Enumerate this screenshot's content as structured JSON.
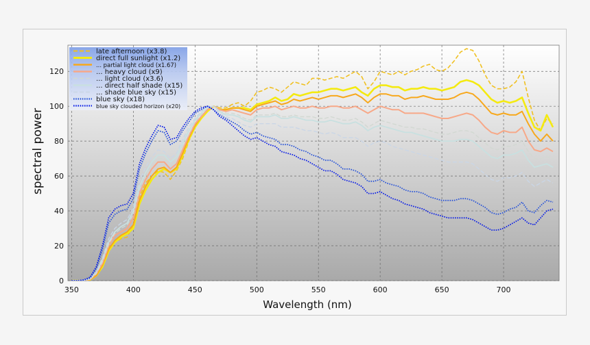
{
  "chart_data": {
    "type": "line",
    "title": "",
    "xlabel": "Wavelength (nm)",
    "ylabel": "spectral power",
    "xlim": [
      347,
      745
    ],
    "ylim": [
      0,
      135
    ],
    "xticks": [
      350,
      400,
      450,
      500,
      550,
      600,
      650,
      700
    ],
    "yticks": [
      0,
      20,
      40,
      60,
      80,
      100,
      120
    ],
    "grid": true,
    "legend_position": "top-left",
    "x": [
      350,
      355,
      360,
      365,
      370,
      375,
      380,
      385,
      390,
      395,
      400,
      405,
      410,
      415,
      420,
      425,
      430,
      435,
      440,
      445,
      450,
      455,
      460,
      465,
      470,
      475,
      480,
      485,
      490,
      495,
      500,
      505,
      510,
      515,
      520,
      525,
      530,
      535,
      540,
      545,
      550,
      555,
      560,
      565,
      570,
      575,
      580,
      585,
      590,
      595,
      600,
      605,
      610,
      615,
      620,
      625,
      630,
      635,
      640,
      645,
      650,
      655,
      660,
      665,
      670,
      675,
      680,
      685,
      690,
      695,
      700,
      705,
      710,
      715,
      720,
      725,
      730,
      735,
      740
    ],
    "series": [
      {
        "name": "late afternoon (x3.8)",
        "color": "#f0c020",
        "style": "dashed",
        "width": 1.6,
        "values": [
          0,
          0,
          0.3,
          1,
          4,
          10,
          19,
          22,
          24,
          25,
          32,
          48,
          56,
          60,
          63,
          62,
          58,
          63,
          70,
          80,
          88,
          94,
          98,
          100,
          99,
          99,
          101,
          102,
          100,
          103,
          108,
          109,
          111,
          110,
          108,
          111,
          114,
          113,
          112,
          116,
          116,
          115,
          116,
          117,
          116,
          118,
          120,
          117,
          110,
          114,
          120,
          119,
          118,
          120,
          118,
          120,
          121,
          123,
          124,
          121,
          120,
          122,
          126,
          131,
          133,
          132,
          126,
          118,
          112,
          110,
          110,
          111,
          114,
          120,
          105,
          92,
          86,
          93,
          90
        ]
      },
      {
        "name": "direct full sunlight (x1.2)",
        "color": "#f4ea10",
        "style": "solid",
        "width": 2.6,
        "values": [
          0,
          0,
          0.2,
          0.5,
          3,
          8,
          17,
          22,
          25,
          27,
          30,
          44,
          52,
          58,
          62,
          64,
          62,
          64,
          72,
          81,
          88,
          93,
          97,
          100,
          98,
          98,
          99,
          99,
          99,
          98,
          101,
          102,
          103,
          105,
          103,
          104,
          107,
          106,
          107,
          108,
          108,
          109,
          110,
          110,
          109,
          110,
          111,
          108,
          106,
          110,
          112,
          112,
          111,
          111,
          109,
          110,
          110,
          111,
          110,
          110,
          109,
          110,
          111,
          114,
          115,
          114,
          112,
          108,
          104,
          102,
          103,
          102,
          103,
          105,
          96,
          88,
          86,
          95,
          88
        ]
      },
      {
        "name": "... partial light cloud (x1.67)",
        "color": "#f7a81c",
        "style": "solid",
        "width": 2.0,
        "values": [
          0,
          0,
          0.2,
          0.6,
          3,
          9,
          18,
          23,
          26,
          28,
          32,
          46,
          54,
          60,
          64,
          65,
          62,
          65,
          73,
          82,
          89,
          94,
          98,
          100,
          98,
          98,
          99,
          99,
          98,
          97,
          100,
          101,
          102,
          103,
          101,
          102,
          104,
          103,
          104,
          105,
          104,
          105,
          106,
          106,
          105,
          106,
          107,
          105,
          102,
          105,
          107,
          107,
          106,
          106,
          104,
          105,
          105,
          106,
          105,
          104,
          104,
          104,
          105,
          107,
          108,
          107,
          104,
          100,
          96,
          95,
          96,
          95,
          95,
          97,
          90,
          84,
          80,
          84,
          80
        ]
      },
      {
        "name": "... heavy cloud (x9)",
        "color": "#f7a888",
        "style": "solid",
        "width": 2.0,
        "values": [
          0,
          0,
          0.3,
          0.8,
          4,
          10,
          20,
          26,
          28,
          30,
          36,
          50,
          58,
          64,
          68,
          68,
          64,
          67,
          75,
          83,
          90,
          94,
          98,
          100,
          98,
          97,
          98,
          97,
          96,
          95,
          98,
          99,
          99,
          100,
          98,
          99,
          100,
          99,
          99,
          100,
          99,
          99,
          100,
          100,
          99,
          99,
          100,
          98,
          96,
          98,
          100,
          99,
          98,
          98,
          96,
          96,
          96,
          96,
          95,
          94,
          93,
          93,
          94,
          95,
          96,
          95,
          92,
          88,
          85,
          84,
          86,
          85,
          85,
          88,
          80,
          75,
          74,
          76,
          74
        ]
      },
      {
        "name": "... light cloud (x3.6)",
        "color": "#d2d8d2",
        "style": "dashed",
        "width": 1.4,
        "values": [
          0,
          0,
          0.3,
          0.9,
          4,
          11,
          21,
          27,
          30,
          32,
          38,
          52,
          60,
          66,
          70,
          70,
          66,
          69,
          77,
          84,
          91,
          95,
          99,
          100,
          97,
          96,
          96,
          95,
          93,
          92,
          95,
          95,
          95,
          96,
          94,
          94,
          95,
          94,
          94,
          94,
          93,
          93,
          94,
          93,
          92,
          92,
          93,
          91,
          88,
          90,
          92,
          91,
          90,
          89,
          88,
          88,
          87,
          87,
          86,
          85,
          84,
          84,
          85,
          86,
          86,
          85,
          82,
          79,
          76,
          75,
          77,
          77,
          78,
          80,
          74,
          70,
          70,
          71,
          70
        ]
      },
      {
        "name": "... direct half shade (x15)",
        "color": "#c8e0e0",
        "style": "solid",
        "width": 1.8,
        "values": [
          0,
          0,
          0.3,
          1,
          5,
          12,
          22,
          28,
          31,
          33,
          40,
          54,
          62,
          68,
          72,
          72,
          68,
          71,
          79,
          86,
          92,
          96,
          99,
          100,
          97,
          95,
          95,
          94,
          92,
          91,
          94,
          94,
          94,
          95,
          93,
          93,
          94,
          93,
          92,
          92,
          91,
          91,
          92,
          91,
          90,
          90,
          91,
          89,
          86,
          88,
          89,
          88,
          87,
          86,
          85,
          85,
          84,
          83,
          82,
          81,
          80,
          80,
          80,
          81,
          81,
          80,
          77,
          74,
          71,
          70,
          72,
          72,
          73,
          75,
          69,
          65,
          66,
          67,
          65
        ]
      },
      {
        "name": "... shade blue sky (x15)",
        "color": "#cad6e6",
        "style": "dashed",
        "width": 1.4,
        "values": [
          0,
          0,
          0.3,
          1,
          5,
          13,
          24,
          30,
          33,
          35,
          42,
          57,
          65,
          71,
          75,
          74,
          70,
          73,
          81,
          88,
          93,
          97,
          100,
          100,
          96,
          94,
          93,
          91,
          89,
          88,
          90,
          90,
          90,
          90,
          88,
          88,
          88,
          87,
          86,
          86,
          85,
          84,
          85,
          84,
          82,
          82,
          82,
          80,
          77,
          79,
          80,
          79,
          77,
          76,
          75,
          74,
          73,
          72,
          71,
          70,
          69,
          68,
          68,
          68,
          68,
          67,
          64,
          61,
          58,
          57,
          59,
          59,
          60,
          62,
          57,
          54,
          56,
          58,
          56
        ]
      },
      {
        "name": "blue sky (x18)",
        "color": "#2a55d8",
        "style": "dotted",
        "width": 1.8,
        "values": [
          0,
          0,
          0.4,
          1.5,
          7,
          18,
          33,
          38,
          40,
          41,
          47,
          64,
          73,
          80,
          86,
          85,
          78,
          80,
          86,
          91,
          96,
          98,
          100,
          98,
          95,
          93,
          91,
          89,
          86,
          84,
          85,
          83,
          82,
          81,
          78,
          78,
          77,
          75,
          74,
          72,
          71,
          69,
          69,
          67,
          64,
          64,
          63,
          61,
          57,
          57,
          58,
          56,
          55,
          54,
          52,
          51,
          51,
          50,
          48,
          47,
          46,
          46,
          46,
          47,
          47,
          46,
          44,
          42,
          39,
          38,
          39,
          41,
          42,
          45,
          40,
          39,
          43,
          46,
          45
        ]
      },
      {
        "name": "blue sky clouded horizon (x20)",
        "color": "#0a1ee6",
        "style": "dotted",
        "width": 1.8,
        "values": [
          0,
          0,
          0.5,
          2,
          8,
          20,
          36,
          41,
          43,
          44,
          50,
          67,
          76,
          83,
          89,
          88,
          81,
          82,
          88,
          93,
          97,
          99,
          100,
          98,
          94,
          92,
          89,
          86,
          83,
          81,
          82,
          80,
          78,
          77,
          74,
          73,
          72,
          70,
          69,
          67,
          65,
          63,
          63,
          61,
          58,
          57,
          56,
          54,
          50,
          50,
          51,
          49,
          47,
          46,
          44,
          43,
          42,
          41,
          39,
          38,
          37,
          36,
          36,
          36,
          36,
          35,
          33,
          31,
          29,
          29,
          30,
          32,
          34,
          36,
          33,
          32,
          36,
          40,
          41
        ]
      }
    ]
  }
}
